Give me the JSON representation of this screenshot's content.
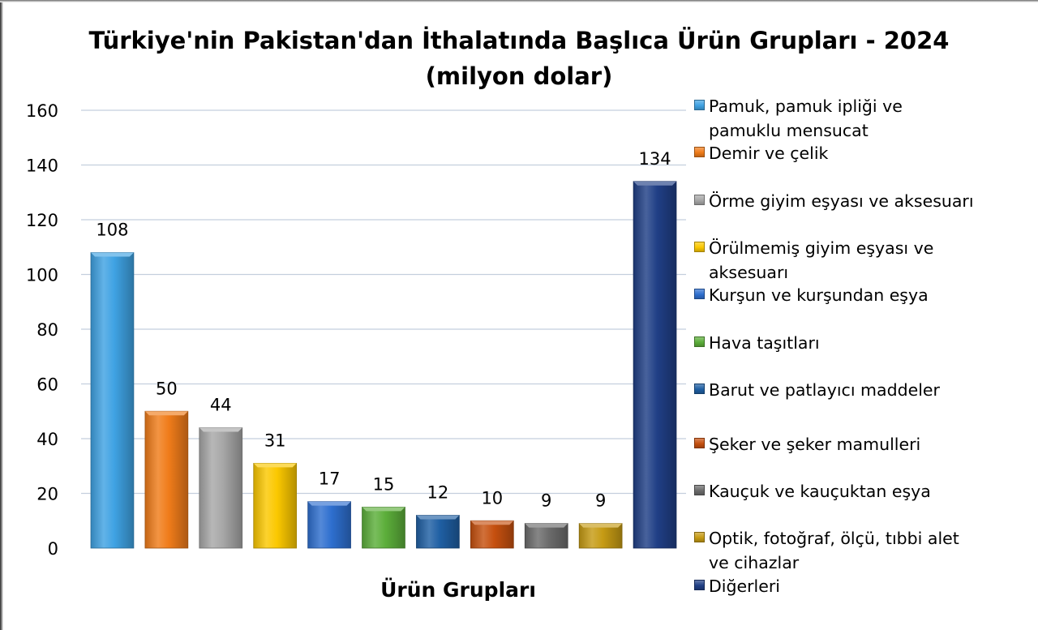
{
  "chart_data": {
    "type": "bar",
    "title": "Türkiye'nin Pakistan'dan İthalatında Başlıca Ürün Grupları - 2024",
    "subtitle": "(milyon dolar)",
    "xlabel": "Ürün Grupları",
    "ylabel": "",
    "ylim": [
      0,
      160
    ],
    "yticks": [
      0,
      20,
      40,
      60,
      80,
      100,
      120,
      140,
      160
    ],
    "grid": true,
    "legend_position": "right",
    "categories": [
      "Pamuk, pamuk ipliği ve pamuklu mensucat",
      "Demir ve çelik",
      "Örme giyim eşyası ve aksesuarı",
      "Örülmemiş giyim eşyası ve aksesuarı",
      "Kurşun ve kurşundan eşya",
      "Hava taşıtları",
      "Barut ve patlayıcı maddeler",
      "Şeker ve şeker mamulleri",
      "Kauçuk ve kauçuktan eşya",
      "Optik, fotoğraf, ölçü, tıbbi alet ve cihazlar",
      "Diğerleri"
    ],
    "values": [
      108,
      50,
      44,
      31,
      17,
      15,
      12,
      10,
      9,
      9,
      134
    ],
    "colors": [
      "#3fa2e3",
      "#f07c1a",
      "#a7a7a7",
      "#fbc800",
      "#2e6fcf",
      "#5cae3a",
      "#1f5fa3",
      "#c6500f",
      "#6c6c6c",
      "#c69b14",
      "#203f86"
    ]
  },
  "legend": {
    "items": [
      "Pamuk, pamuk ipliği ve\npamuklu mensucat",
      "Demir ve çelik",
      "Örme giyim eşyası ve aksesuarı",
      "Örülmemiş giyim eşyası ve\naksesuarı",
      "Kurşun ve kurşundan eşya",
      "Hava taşıtları",
      "Barut ve patlayıcı maddeler",
      "Şeker ve şeker mamulleri",
      "Kauçuk ve kauçuktan eşya",
      "Optik, fotoğraf, ölçü, tıbbi alet\nve cihazlar",
      "Diğerleri"
    ]
  }
}
